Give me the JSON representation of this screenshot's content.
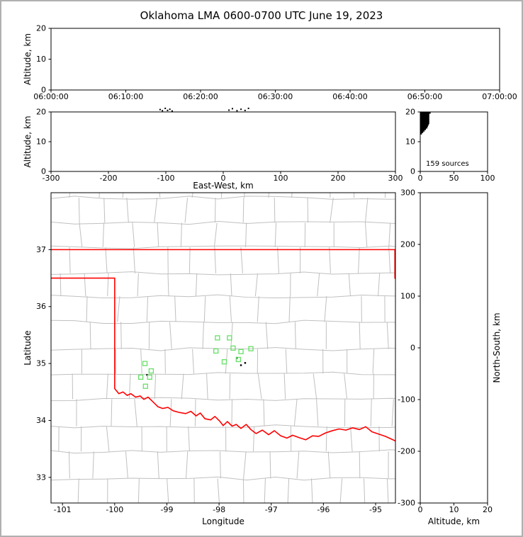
{
  "title": "Oklahoma LMA 0600-0700 UTC June 19, 2023",
  "colors": {
    "frame": "#000000",
    "tick": "#000000",
    "county_line": "#c0c0c0",
    "state_border": "#ff0000",
    "station_marker": "#66e066",
    "source_dot": "#000000",
    "histogram": "#000000",
    "background": "#ffffff",
    "figure_border": "#b0b0b0"
  },
  "chart_data": [
    {
      "id": "time_height",
      "type": "scatter",
      "xlabel": "",
      "ylabel": "Altitude, km",
      "xlim": [
        0,
        3600
      ],
      "ylim": [
        0,
        20
      ],
      "xticks": [
        0,
        600,
        1200,
        1800,
        2400,
        3000,
        3600
      ],
      "xtick_labels": [
        "06:00:00",
        "06:10:00",
        "06:20:00",
        "06:30:00",
        "06:40:00",
        "06:50:00",
        "07:00:00"
      ],
      "yticks": [
        0,
        10,
        20
      ],
      "points": []
    },
    {
      "id": "ew_height",
      "type": "scatter",
      "xlabel": "East-West, km",
      "ylabel": "Altitude, km",
      "xlim": [
        -300,
        300
      ],
      "ylim": [
        0,
        20
      ],
      "xticks": [
        -300,
        -200,
        -100,
        0,
        100,
        200,
        300
      ],
      "yticks": [
        0,
        10,
        20
      ],
      "points": [
        [
          -110,
          20.8
        ],
        [
          -106,
          20.4
        ],
        [
          -101,
          21.2
        ],
        [
          -97,
          20.5
        ],
        [
          -93,
          20.9
        ],
        [
          -89,
          20.3
        ],
        [
          10,
          20.6
        ],
        [
          16,
          21.1
        ],
        [
          24,
          20.4
        ],
        [
          31,
          20.9
        ],
        [
          38,
          20.5
        ],
        [
          44,
          21.2
        ]
      ]
    },
    {
      "id": "altitude_histogram",
      "type": "histogram",
      "annotation": "159 sources",
      "total_sources": 159,
      "xlim": [
        0,
        100
      ],
      "ylim": [
        0,
        20
      ],
      "xticks": [
        0,
        50,
        100
      ],
      "yticks": [
        0,
        10,
        20
      ],
      "bin_edges_km": [
        12.5,
        13.0,
        13.5,
        14.0,
        14.5,
        15.0,
        15.5,
        16.0,
        16.5,
        17.0,
        17.5,
        18.0,
        18.5,
        19.0,
        19.5,
        20.0
      ],
      "counts": [
        2,
        4,
        6,
        8,
        10,
        11,
        12,
        13,
        13,
        13,
        13,
        13,
        13,
        13,
        15
      ]
    },
    {
      "id": "plan_view",
      "type": "map",
      "xlabel": "Longitude",
      "ylabel": "Latitude",
      "xlim": [
        -101.22,
        -94.62
      ],
      "ylim": [
        32.55,
        38.0
      ],
      "xticks": [
        -101,
        -100,
        -99,
        -98,
        -97,
        -96,
        -95
      ],
      "yticks": [
        33,
        34,
        35,
        36,
        37
      ],
      "stations": [
        [
          -99.42,
          35.0
        ],
        [
          -99.5,
          34.76
        ],
        [
          -99.33,
          34.76
        ],
        [
          -99.41,
          34.6
        ],
        [
          -99.3,
          34.87
        ],
        [
          -98.03,
          35.45
        ],
        [
          -97.8,
          35.45
        ],
        [
          -98.06,
          35.22
        ],
        [
          -97.73,
          35.27
        ],
        [
          -97.58,
          35.21
        ],
        [
          -97.39,
          35.26
        ],
        [
          -97.9,
          35.03
        ],
        [
          -97.63,
          35.07
        ]
      ],
      "sources": [
        [
          -97.66,
          35.1
        ],
        [
          -97.5,
          35.01
        ],
        [
          -97.58,
          34.97
        ],
        [
          -99.38,
          34.8
        ]
      ],
      "state_border": [
        [
          [
            -101.22,
            37.0
          ],
          [
            -94.62,
            37.0
          ]
        ],
        [
          [
            -94.63,
            37.0
          ],
          [
            -94.63,
            36.5
          ],
          [
            -94.5,
            36.35
          ]
        ],
        [
          [
            -101.22,
            36.5
          ],
          [
            -100.0,
            36.5
          ],
          [
            -100.0,
            34.56
          ],
          [
            -99.92,
            34.47
          ],
          [
            -99.84,
            34.5
          ],
          [
            -99.76,
            34.44
          ],
          [
            -99.69,
            34.47
          ],
          [
            -99.6,
            34.41
          ],
          [
            -99.51,
            34.43
          ],
          [
            -99.44,
            34.37
          ],
          [
            -99.36,
            34.41
          ],
          [
            -99.27,
            34.33
          ],
          [
            -99.17,
            34.24
          ],
          [
            -99.08,
            34.21
          ],
          [
            -98.98,
            34.23
          ],
          [
            -98.88,
            34.17
          ],
          [
            -98.76,
            34.14
          ],
          [
            -98.64,
            34.12
          ],
          [
            -98.54,
            34.16
          ],
          [
            -98.44,
            34.08
          ],
          [
            -98.36,
            34.13
          ],
          [
            -98.27,
            34.03
          ],
          [
            -98.16,
            34.01
          ],
          [
            -98.08,
            34.07
          ],
          [
            -97.99,
            33.99
          ],
          [
            -97.92,
            33.91
          ],
          [
            -97.84,
            33.98
          ],
          [
            -97.75,
            33.9
          ],
          [
            -97.67,
            33.93
          ],
          [
            -97.58,
            33.86
          ],
          [
            -97.48,
            33.93
          ],
          [
            -97.39,
            33.84
          ],
          [
            -97.29,
            33.77
          ],
          [
            -97.17,
            33.83
          ],
          [
            -97.05,
            33.75
          ],
          [
            -96.94,
            33.82
          ],
          [
            -96.82,
            33.73
          ],
          [
            -96.7,
            33.69
          ],
          [
            -96.59,
            33.74
          ],
          [
            -96.47,
            33.7
          ],
          [
            -96.34,
            33.66
          ],
          [
            -96.21,
            33.73
          ],
          [
            -96.09,
            33.72
          ],
          [
            -95.96,
            33.78
          ],
          [
            -95.83,
            33.82
          ],
          [
            -95.7,
            33.85
          ],
          [
            -95.57,
            33.83
          ],
          [
            -95.44,
            33.87
          ],
          [
            -95.31,
            33.84
          ],
          [
            -95.19,
            33.89
          ],
          [
            -95.07,
            33.8
          ],
          [
            -94.94,
            33.76
          ],
          [
            -94.81,
            33.72
          ],
          [
            -94.62,
            33.64
          ]
        ]
      ]
    },
    {
      "id": "ns_height",
      "type": "scatter",
      "xlabel": "Altitude, km",
      "ylabel": "North-South, km",
      "xlim": [
        0,
        20
      ],
      "ylim": [
        -300,
        300
      ],
      "xticks": [
        0,
        10,
        20
      ],
      "yticks": [
        -300,
        -200,
        -100,
        0,
        100,
        200,
        300
      ],
      "points": []
    }
  ]
}
